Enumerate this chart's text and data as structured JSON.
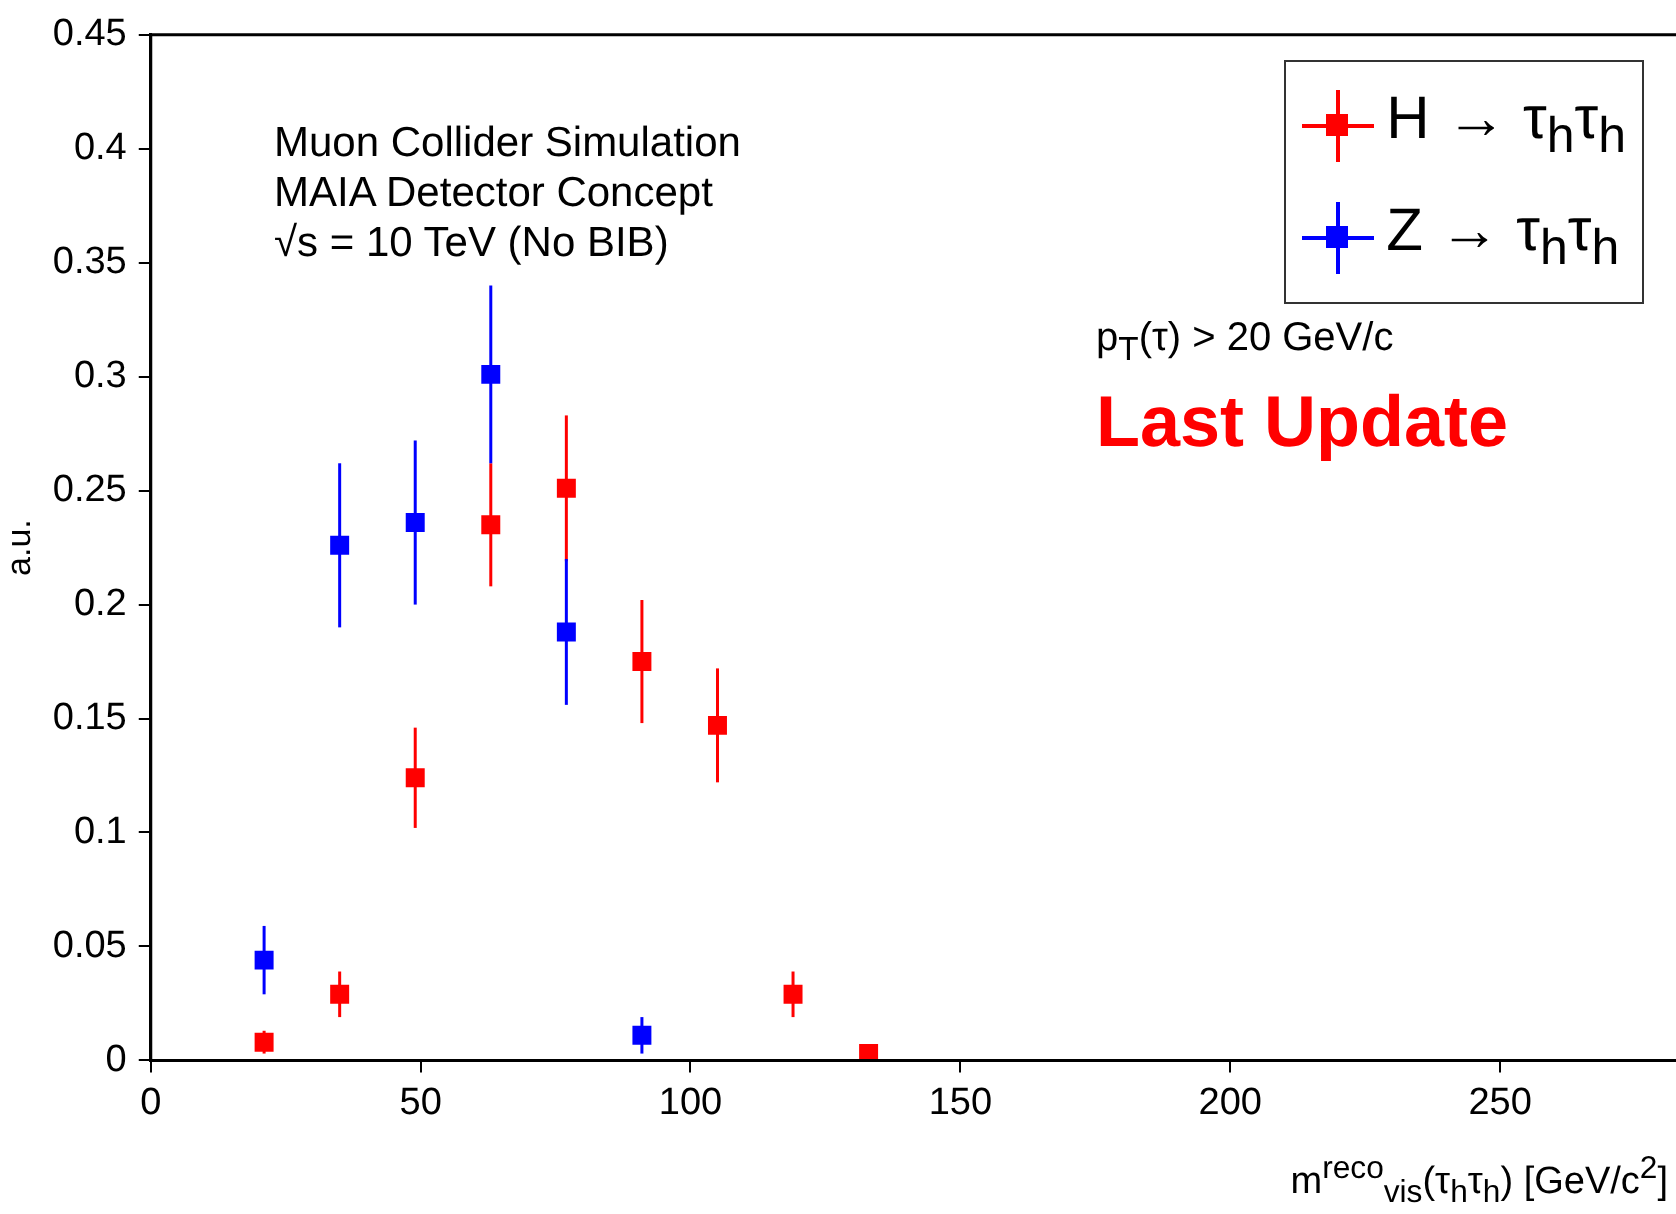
{
  "chart_data": {
    "type": "scatter",
    "xlabel": "m$^{reco}$$_{vis}$(τ$_{h}$τ$_{h}$) [GeV/c$^{2}$]",
    "ylabel": "a.u.",
    "annotations": [
      "Muon Collider Simulation",
      "MAIA Detector Concept",
      "√s = 10 TeV (No BIB)",
      "p$_{T}$(τ) > 20 GeV/c",
      "Last Update"
    ],
    "xlim": [
      0,
      280
    ],
    "xticks": [
      0,
      50,
      100,
      150,
      200,
      250
    ],
    "ylim": [
      0,
      0.45
    ],
    "yticks": [
      0,
      0.05,
      0.1,
      0.15,
      0.2,
      0.25,
      0.3,
      0.35,
      0.4,
      0.45
    ],
    "grid": false,
    "legend": "top right",
    "marker": "square",
    "series": [
      {
        "name": "H → τ$_{h}$τ$_{h}$",
        "color": "#ff0000",
        "x": [
          21,
          35,
          49,
          63,
          77,
          91,
          105,
          119,
          133
        ],
        "values": [
          0.008,
          0.029,
          0.124,
          0.235,
          0.251,
          0.175,
          0.147,
          0.029,
          0.003
        ],
        "errors": [
          0.005,
          0.01,
          0.022,
          0.027,
          0.032,
          0.027,
          0.025,
          0.01,
          0.002
        ]
      },
      {
        "name": "Z → τ$_{h}$τ$_{h}$",
        "color": "#0000ff",
        "x": [
          21,
          35,
          49,
          63,
          77,
          91
        ],
        "values": [
          0.044,
          0.226,
          0.236,
          0.301,
          0.188,
          0.011
        ],
        "errors": [
          0.015,
          0.036,
          0.036,
          0.039,
          0.032,
          0.008
        ]
      }
    ]
  }
}
